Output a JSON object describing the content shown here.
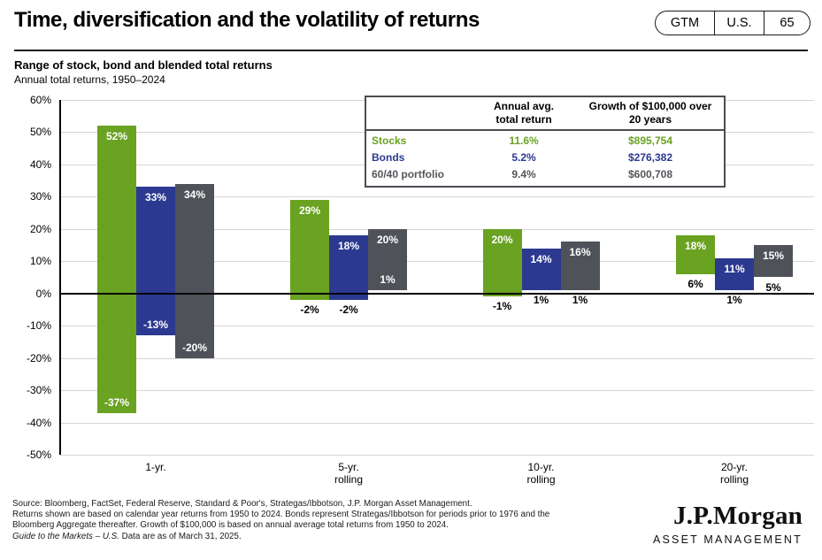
{
  "header": {
    "title": "Time, diversification and the volatility of returns",
    "badges": {
      "gtm": "GTM",
      "region": "U.S.",
      "page": "65"
    }
  },
  "chart": {
    "heading": "Range of stock, bond and blended total returns",
    "subtitle": "Annual total returns, 1950–2024"
  },
  "colors": {
    "stocks_green": "#6aa221",
    "bonds_blue": "#2b3990",
    "blend_gray": "#4f5359",
    "gridline": "#d6d6d6",
    "axis": "#000000",
    "table_gray_text": "#54565b"
  },
  "chart_data": {
    "type": "bar",
    "variant": "floating-range-bars",
    "title": "Range of stock, bond and blended total returns",
    "subtitle": "Annual total returns, 1950–2024",
    "ylim": [
      -50,
      60
    ],
    "ytick_step": 10,
    "ytick_suffix": "%",
    "grid": true,
    "legend_position": "none",
    "series": [
      {
        "name": "Stocks",
        "color": "#6aa221"
      },
      {
        "name": "Bonds",
        "color": "#2b3990"
      },
      {
        "name": "60/40 portfolio",
        "color": "#4f5359"
      }
    ],
    "groups": [
      {
        "category_lines": [
          "1-yr."
        ],
        "bars": [
          {
            "series": "Stocks",
            "high": 52,
            "low": -37,
            "high_label": "52%",
            "low_label": "-37%",
            "low_label_placement": "inside"
          },
          {
            "series": "Bonds",
            "high": 33,
            "low": -13,
            "high_label": "33%",
            "low_label": "-13%",
            "low_label_placement": "inside"
          },
          {
            "series": "60/40 portfolio",
            "high": 34,
            "low": -20,
            "high_label": "34%",
            "low_label": "-20%",
            "low_label_placement": "inside"
          }
        ]
      },
      {
        "category_lines": [
          "5-yr.",
          "rolling"
        ],
        "bars": [
          {
            "series": "Stocks",
            "high": 29,
            "low": -2,
            "high_label": "29%",
            "low_label": "-2%",
            "low_label_placement": "below"
          },
          {
            "series": "Bonds",
            "high": 18,
            "low": -2,
            "high_label": "18%",
            "low_label": "-2%",
            "low_label_placement": "below"
          },
          {
            "series": "60/40 portfolio",
            "high": 20,
            "low": 1,
            "high_label": "20%",
            "low_label": "1%",
            "low_label_placement": "inside"
          }
        ]
      },
      {
        "category_lines": [
          "10-yr.",
          "rolling"
        ],
        "bars": [
          {
            "series": "Stocks",
            "high": 20,
            "low": -1,
            "high_label": "20%",
            "low_label": "-1%",
            "low_label_placement": "below"
          },
          {
            "series": "Bonds",
            "high": 14,
            "low": 1,
            "high_label": "14%",
            "low_label": "1%",
            "low_label_placement": "below"
          },
          {
            "series": "60/40 portfolio",
            "high": 16,
            "low": 1,
            "high_label": "16%",
            "low_label": "1%",
            "low_label_placement": "below"
          }
        ]
      },
      {
        "category_lines": [
          "20-yr.",
          "rolling"
        ],
        "bars": [
          {
            "series": "Stocks",
            "high": 18,
            "low": 6,
            "high_label": "18%",
            "low_label": "6%",
            "low_label_placement": "below"
          },
          {
            "series": "Bonds",
            "high": 11,
            "low": 1,
            "high_label": "11%",
            "low_label": "1%",
            "low_label_placement": "below"
          },
          {
            "series": "60/40 portfolio",
            "high": 15,
            "low": 5,
            "high_label": "15%",
            "low_label": "5%",
            "low_label_placement": "below"
          }
        ]
      }
    ]
  },
  "table": {
    "header_col1_line1": "Annual avg.",
    "header_col1_line2": "total return",
    "header_col2_line1": "Growth of $100,000 over",
    "header_col2_line2": "20 years",
    "rows": [
      {
        "label": "Stocks",
        "avg_return": "11.6%",
        "growth": "$895,754",
        "color": "#6aa221"
      },
      {
        "label": "Bonds",
        "avg_return": "5.2%",
        "growth": "$276,382",
        "color": "#2b3990"
      },
      {
        "label": "60/40 portfolio",
        "avg_return": "9.4%",
        "growth": "$600,708",
        "color": "#54565b"
      }
    ]
  },
  "footer": {
    "line1": "Source: Bloomberg, FactSet, Federal Reserve, Standard & Poor's, Strategas/Ibbotson, J.P. Morgan Asset Management.",
    "line2": "Returns shown are based on calendar year returns from 1950 to 2024. Bonds represent Strategas/Ibbotson for periods prior to 1976 and the",
    "line3": "Bloomberg Aggregate thereafter. Growth of $100,000 is based on annual average total returns from 1950 to 2024.",
    "line4_italic": "Guide to the Markets – U.S.",
    "line4_rest": " Data are as of March 31, 2025."
  },
  "logo": {
    "brand": "J.P.Morgan",
    "division": "ASSET MANAGEMENT"
  }
}
